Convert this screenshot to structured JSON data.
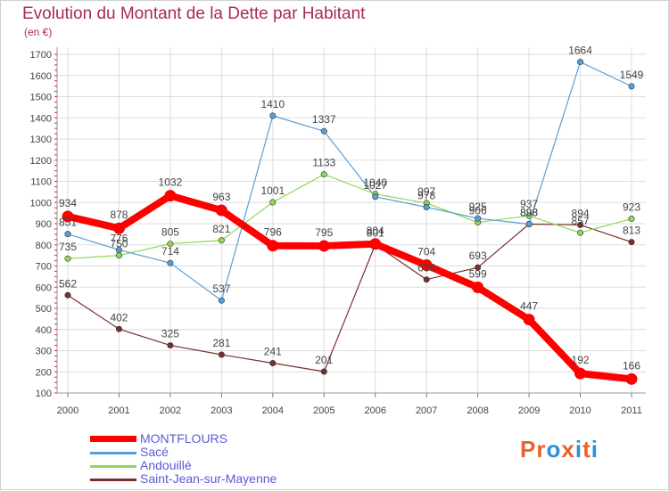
{
  "header": {
    "title": "Evolution du Montant de la Dette par Habitant",
    "subtitle": "(en €)"
  },
  "logo": {
    "text": "Proxiti",
    "letters": [
      "P",
      "r",
      "o",
      "x",
      "i",
      "t",
      "i"
    ],
    "colors": [
      "#e8642a",
      "#e8642a",
      "#2f8fd8",
      "#e8642a",
      "#2f8fd8",
      "#e8642a",
      "#2f8fd8"
    ]
  },
  "chart_data": {
    "type": "line",
    "title": "Evolution du Montant de la Dette par Habitant",
    "ylabel": "(en €)",
    "xlabel": "",
    "x": [
      "2000",
      "2001",
      "2002",
      "2003",
      "2004",
      "2005",
      "2006",
      "2007",
      "2008",
      "2009",
      "2010",
      "2011"
    ],
    "ylim": [
      100,
      1700
    ],
    "yticks": [
      100,
      200,
      300,
      400,
      500,
      600,
      700,
      800,
      900,
      1000,
      1100,
      1200,
      1300,
      1400,
      1500,
      1600,
      1700
    ],
    "grid": true,
    "legend": "bottom-left",
    "series": [
      {
        "name": "MONTFLOURS",
        "color": "#ff0000",
        "values": [
          934,
          878,
          1032,
          963,
          796,
          795,
          804,
          704,
          599,
          447,
          192,
          166
        ],
        "labels": [
          "934",
          "878",
          "1032",
          "963",
          "796",
          "795",
          "804",
          "704",
          "599",
          "447",
          "192",
          "166"
        ]
      },
      {
        "name": "Sacé",
        "color": "#5a9ed6",
        "values": [
          851,
          776,
          714,
          537,
          1410,
          1337,
          1027,
          978,
          925,
          898,
          1664,
          1549
        ],
        "labels": [
          "851",
          "776",
          "714",
          "537",
          "1410",
          "1337",
          "1027",
          "978",
          "925",
          "898",
          "1664",
          "1549"
        ]
      },
      {
        "name": "Andouillé",
        "color": "#8ed858",
        "values": [
          735,
          750,
          805,
          821,
          1001,
          1133,
          1040,
          997,
          906,
          937,
          857,
          923
        ],
        "labels": [
          "735",
          "750",
          "805",
          "821",
          "1001",
          "1133",
          "1040",
          "997",
          "906",
          "937",
          "857",
          "923"
        ]
      },
      {
        "name": "Saint-Jean-sur-Mayenne",
        "color": "#7a2e2e",
        "values": [
          562,
          402,
          325,
          281,
          241,
          201,
          801,
          636,
          693,
          898,
          894,
          813
        ],
        "labels": [
          "562",
          "402",
          "325",
          "281",
          "241",
          "201",
          "801",
          "636",
          "693",
          "898",
          "894",
          "813"
        ]
      }
    ]
  }
}
